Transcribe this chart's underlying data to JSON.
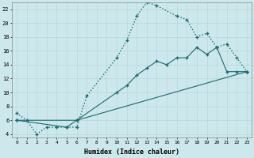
{
  "xlabel": "Humidex (Indice chaleur)",
  "bg_color": "#cce8ec",
  "grid_color": "#b8d8dc",
  "line_color": "#1a6b6b",
  "xlim": [
    -0.5,
    23.5
  ],
  "ylim": [
    3.5,
    23
  ],
  "yticks": [
    4,
    6,
    8,
    10,
    12,
    14,
    16,
    18,
    20,
    22
  ],
  "xticks": [
    0,
    1,
    2,
    3,
    4,
    5,
    6,
    7,
    8,
    9,
    10,
    11,
    12,
    13,
    14,
    15,
    16,
    17,
    18,
    19,
    20,
    21,
    22,
    23
  ],
  "line1_x": [
    0,
    1,
    2,
    3,
    4,
    5,
    6,
    7,
    10,
    11,
    12,
    13,
    14,
    16,
    17,
    18,
    19,
    20,
    21,
    22,
    23
  ],
  "line1_y": [
    7,
    6,
    4,
    5,
    5,
    5,
    5,
    9.5,
    15,
    17.5,
    21,
    23,
    22.5,
    21,
    20.5,
    18,
    18.5,
    16.5,
    17,
    15,
    13
  ],
  "line2_x": [
    0,
    5,
    6,
    10,
    11,
    12,
    13,
    14,
    15,
    16,
    17,
    18,
    19,
    20,
    21,
    22,
    23
  ],
  "line2_y": [
    6,
    5,
    6,
    10,
    11,
    12.5,
    13.5,
    14.5,
    14,
    15,
    15,
    16.5,
    15.5,
    16.5,
    13,
    13,
    13
  ],
  "line3_x": [
    0,
    6,
    23
  ],
  "line3_y": [
    6,
    6,
    13
  ]
}
